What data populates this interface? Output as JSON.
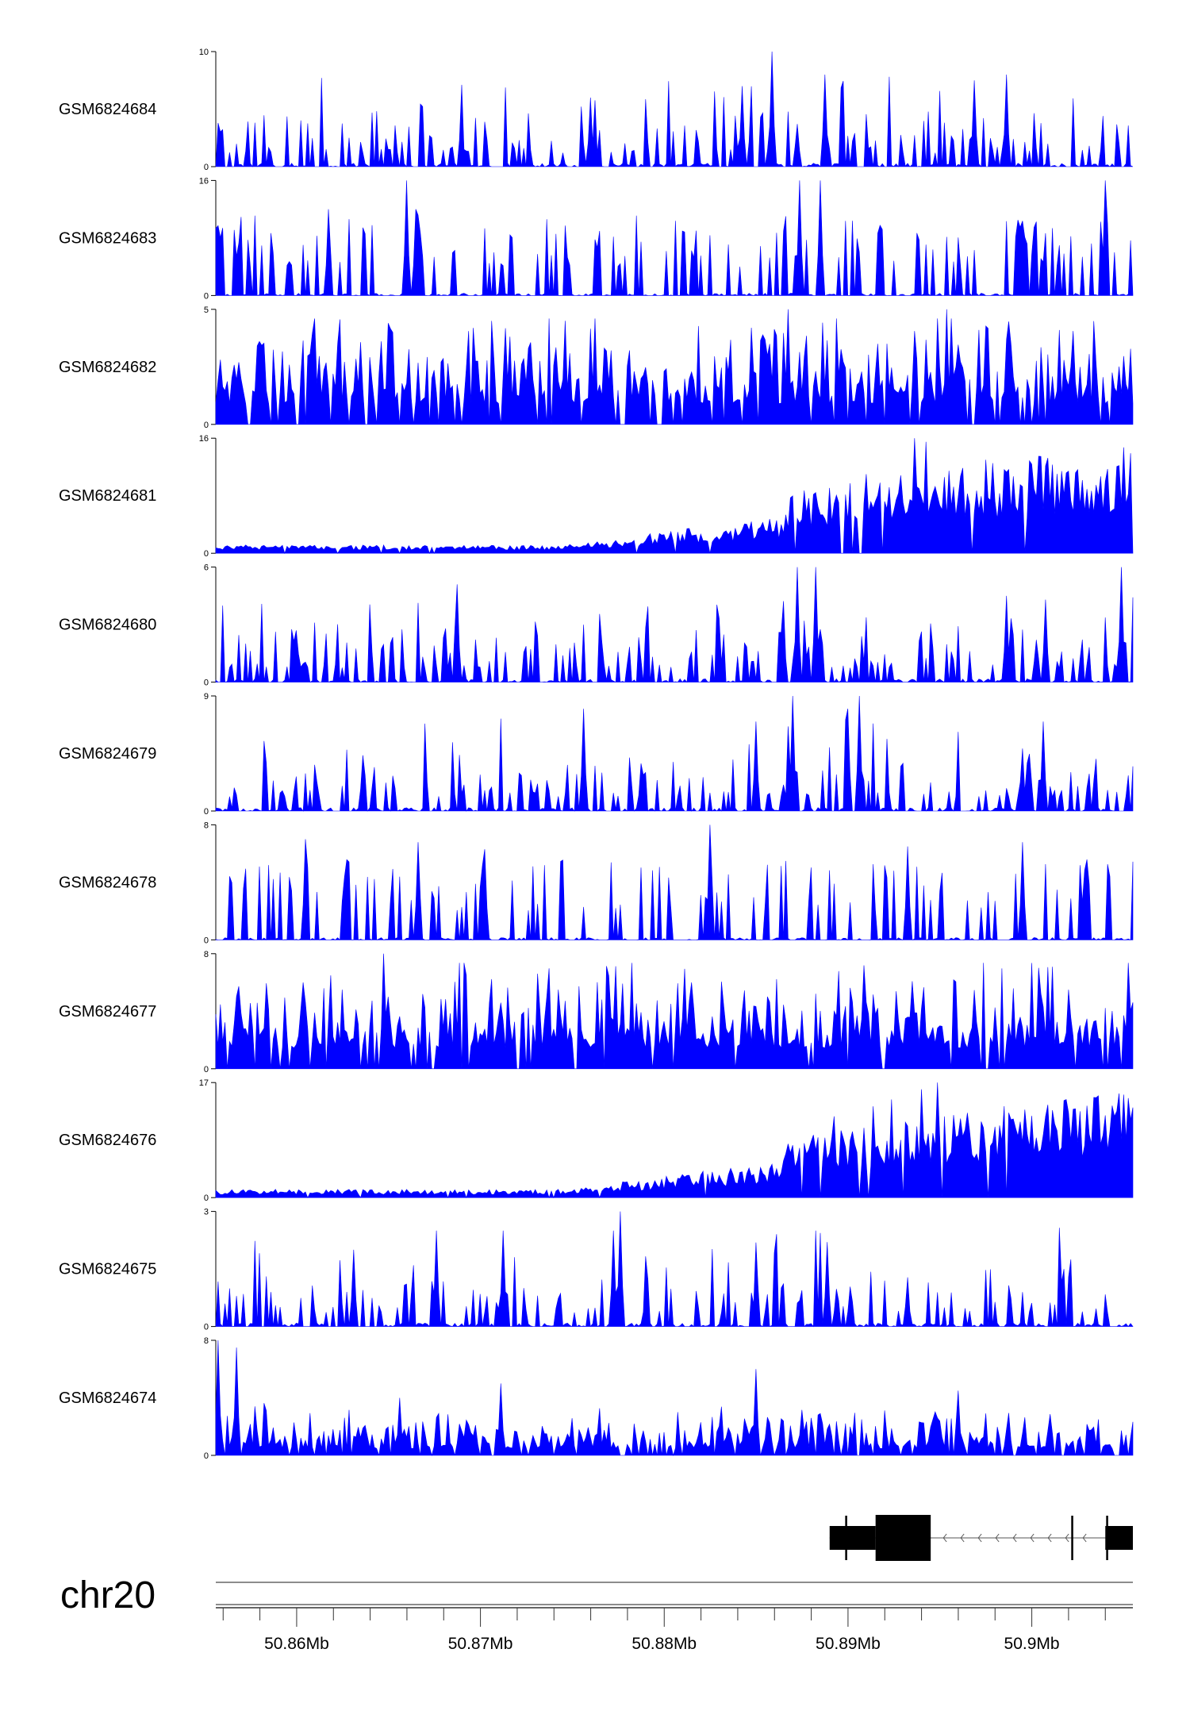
{
  "chart_data": {
    "type": "area",
    "chromosome": "chr20",
    "xlim": [
      50.8556,
      50.9055
    ],
    "x_unit": "Mb",
    "x_ticks": [
      {
        "value": 50.86,
        "label": "50.86Mb"
      },
      {
        "value": 50.87,
        "label": "50.87Mb"
      },
      {
        "value": 50.88,
        "label": "50.88Mb"
      },
      {
        "value": 50.89,
        "label": "50.89Mb"
      },
      {
        "value": 50.9,
        "label": "50.9Mb"
      }
    ],
    "fill_color": "#0000ff",
    "tracks": [
      {
        "name": "GSM6824684",
        "ymax": 10,
        "ymax_label": "10",
        "ymin_label": "0",
        "pattern": "sparse",
        "peaks": [
          [
            0.607,
            10
          ],
          [
            0.575,
            7
          ],
          [
            0.664,
            8
          ],
          [
            0.861,
            8
          ],
          [
            0.826,
            7.5
          ],
          [
            0.409,
            6
          ]
        ]
      },
      {
        "name": "GSM6824683",
        "ymax": 16,
        "ymax_label": "16",
        "ymin_label": "0",
        "pattern": "spiky",
        "peaks": [
          [
            0.208,
            16
          ],
          [
            0.636,
            16
          ],
          [
            0.969,
            16
          ],
          [
            0.659,
            16
          ],
          [
            0.122,
            12
          ],
          [
            0.217,
            12
          ]
        ]
      },
      {
        "name": "GSM6824682",
        "ymax": 5,
        "ymax_label": "5",
        "ymin_label": "0",
        "pattern": "dense",
        "peaks": [
          [
            0.798,
            5
          ],
          [
            0.624,
            5
          ],
          [
            0.189,
            4.4
          ],
          [
            0.381,
            4.5
          ],
          [
            0.585,
            4.2
          ]
        ]
      },
      {
        "name": "GSM6824681",
        "ymax": 16,
        "ymax_label": "16",
        "ymin_label": "0",
        "pattern": "ramp",
        "peaks": [
          [
            0.762,
            16
          ],
          [
            0.775,
            15.5
          ],
          [
            0.896,
            13.5
          ],
          [
            0.71,
            11
          ],
          [
            0.84,
            13
          ],
          [
            0.969,
            10
          ]
        ]
      },
      {
        "name": "GSM6824680",
        "ymax": 6,
        "ymax_label": "6",
        "ymin_label": "0",
        "pattern": "sparse",
        "peaks": [
          [
            0.987,
            6
          ],
          [
            0.633,
            6
          ],
          [
            0.655,
            6
          ],
          [
            0.263,
            5.1
          ],
          [
            0.861,
            4.5
          ],
          [
            0.904,
            4.3
          ]
        ]
      },
      {
        "name": "GSM6824679",
        "ymax": 9,
        "ymax_label": "9",
        "ymin_label": "0",
        "pattern": "sparse",
        "peaks": [
          [
            0.63,
            9
          ],
          [
            0.702,
            9
          ],
          [
            0.402,
            8
          ],
          [
            0.69,
            8
          ],
          [
            0.59,
            7
          ],
          [
            0.902,
            7
          ]
        ]
      },
      {
        "name": "GSM6824678",
        "ymax": 8,
        "ymax_label": "8",
        "ymin_label": "0",
        "pattern": "spiky",
        "peaks": [
          [
            0.538,
            8
          ],
          [
            0.098,
            7
          ],
          [
            0.22,
            6.8
          ],
          [
            0.879,
            6.8
          ],
          [
            0.754,
            6.5
          ],
          [
            0.293,
            6.3
          ]
        ]
      },
      {
        "name": "GSM6824677",
        "ymax": 8,
        "ymax_label": "8",
        "ymin_label": "0",
        "pattern": "dense",
        "peaks": [
          [
            0.184,
            8
          ],
          [
            0.095,
            6
          ],
          [
            0.138,
            5.5
          ],
          [
            0.36,
            5
          ],
          [
            0.518,
            6
          ],
          [
            0.931,
            5.5
          ]
        ]
      },
      {
        "name": "GSM6824676",
        "ymax": 17,
        "ymax_label": "17",
        "ymin_label": "0",
        "pattern": "ramp",
        "peaks": [
          [
            0.786,
            17
          ],
          [
            0.769,
            16
          ],
          [
            0.737,
            14.5
          ],
          [
            0.718,
            13.5
          ],
          [
            0.883,
            13
          ],
          [
            0.675,
            12
          ]
        ]
      },
      {
        "name": "GSM6824675",
        "ymax": 3,
        "ymax_label": "3",
        "ymin_label": "0",
        "pattern": "sparse",
        "peaks": [
          [
            0.441,
            3
          ],
          [
            0.434,
            2.5
          ],
          [
            0.24,
            2.5
          ],
          [
            0.313,
            2.5
          ],
          [
            0.666,
            2.2
          ],
          [
            0.15,
            2
          ]
        ]
      },
      {
        "name": "GSM6824674",
        "ymax": 8,
        "ymax_label": "8",
        "ymin_label": "0",
        "pattern": "lowdense",
        "peaks": [
          [
            0.002,
            8
          ],
          [
            0.023,
            7.5
          ],
          [
            0.589,
            6
          ],
          [
            0.81,
            4.5
          ],
          [
            0.2,
            4
          ],
          [
            0.312,
            5
          ]
        ]
      }
    ],
    "gene_model": {
      "strand": "-",
      "start": 50.889,
      "end": 50.9055,
      "exons": [
        {
          "start": 50.889,
          "end": 50.8915,
          "type": "utr"
        },
        {
          "start": 50.8915,
          "end": 50.8945,
          "type": "cds"
        },
        {
          "start": 50.904,
          "end": 50.9055,
          "type": "utr"
        }
      ],
      "ticks": [
        50.8899,
        50.9022,
        50.9041
      ]
    }
  }
}
